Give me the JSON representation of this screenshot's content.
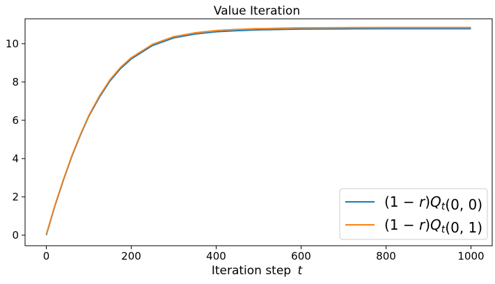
{
  "chart_data": {
    "type": "line",
    "title": "Value Iteration",
    "xlabel": "Iteration step",
    "xlabel_var": "t",
    "ylabel": "",
    "xlim": [
      -50,
      1050
    ],
    "ylim": [
      -0.55,
      11.3
    ],
    "xticks": [
      0,
      200,
      400,
      600,
      800,
      1000
    ],
    "yticks": [
      0,
      2,
      4,
      6,
      8,
      10
    ],
    "grid": false,
    "legend_position": "bottom-right",
    "series": [
      {
        "name": "(1 − r)Q_t(0, 0)",
        "label_prefix": "(1 − ",
        "label_r": "r",
        "label_mid": ")",
        "label_Q": "Q",
        "label_sub": "t",
        "label_args": "(0, 0)",
        "color": "#1f77b4",
        "x": [
          0,
          20,
          40,
          60,
          80,
          100,
          125,
          150,
          175,
          200,
          250,
          300,
          350,
          400,
          450,
          500,
          600,
          700,
          800,
          900,
          1000
        ],
        "values": [
          0.0,
          1.5,
          2.85,
          4.1,
          5.2,
          6.2,
          7.2,
          8.05,
          8.7,
          9.2,
          9.9,
          10.3,
          10.5,
          10.62,
          10.68,
          10.72,
          10.76,
          10.77,
          10.78,
          10.78,
          10.78
        ]
      },
      {
        "name": "(1 − r)Q_t(0, 1)",
        "label_prefix": "(1 − ",
        "label_r": "r",
        "label_mid": ")",
        "label_Q": "Q",
        "label_sub": "t",
        "label_args": "(0, 1)",
        "color": "#ff7f0e",
        "x": [
          0,
          20,
          40,
          60,
          80,
          100,
          125,
          150,
          175,
          200,
          250,
          300,
          350,
          400,
          450,
          500,
          600,
          700,
          800,
          900,
          1000
        ],
        "values": [
          0.05,
          1.55,
          2.9,
          4.15,
          5.25,
          6.25,
          7.27,
          8.12,
          8.77,
          9.27,
          9.97,
          10.37,
          10.57,
          10.69,
          10.75,
          10.79,
          10.83,
          10.84,
          10.85,
          10.85,
          10.85
        ]
      }
    ]
  }
}
